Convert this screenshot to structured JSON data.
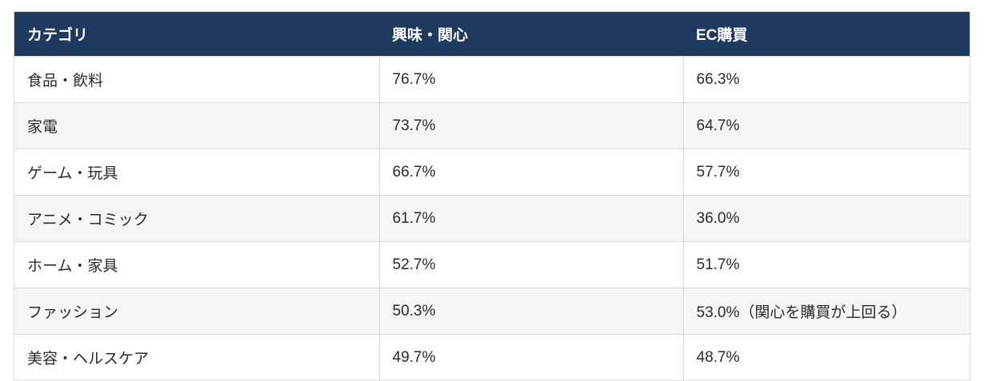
{
  "colors": {
    "header_bg": "#1e3a5f",
    "header_text": "#ffffff",
    "row_alt_bg": "#f5f5f5",
    "border": "#d9d9d9",
    "body_text": "#2b2b2b"
  },
  "table": {
    "columns": [
      "カテゴリ",
      "興味・関心",
      "EC購買"
    ],
    "rows": [
      [
        "食品・飲料",
        "76.7%",
        "66.3%"
      ],
      [
        "家電",
        "73.7%",
        "64.7%"
      ],
      [
        "ゲーム・玩具",
        "66.7%",
        "57.7%"
      ],
      [
        "アニメ・コミック",
        "61.7%",
        "36.0%"
      ],
      [
        "ホーム・家具",
        "52.7%",
        "51.7%"
      ],
      [
        "ファッション",
        "50.3%",
        "53.0%（関心を購買が上回る）"
      ],
      [
        "美容・ヘルスケア",
        "49.7%",
        "48.7%"
      ]
    ]
  },
  "chart_data": {
    "type": "table",
    "columns": [
      "カテゴリ",
      "興味・関心",
      "EC購買"
    ],
    "categories": [
      "食品・飲料",
      "家電",
      "ゲーム・玩具",
      "アニメ・コミック",
      "ホーム・家具",
      "ファッション",
      "美容・ヘルスケア"
    ],
    "series": [
      {
        "name": "興味・関心",
        "values": [
          76.7,
          73.7,
          66.7,
          61.7,
          52.7,
          50.3,
          49.7
        ]
      },
      {
        "name": "EC購買",
        "values": [
          66.3,
          64.7,
          57.7,
          36.0,
          51.7,
          53.0,
          48.7
        ]
      }
    ],
    "annotations": [
      {
        "row": "ファッション",
        "column": "EC購買",
        "note": "（関心を購買が上回る）"
      }
    ],
    "unit": "%"
  }
}
